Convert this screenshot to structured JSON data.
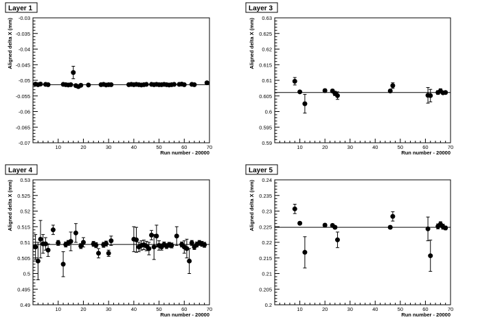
{
  "chart_data": [
    {
      "type": "scatter",
      "title": "Layer 1",
      "xlabel": "Run number - 20000",
      "ylabel": "Aligned delta X (mm)",
      "xlim": [
        0,
        70
      ],
      "ylim": [
        -0.07,
        -0.03
      ],
      "xticks": [
        10,
        20,
        30,
        40,
        50,
        60,
        70
      ],
      "yticks": [
        -0.07,
        -0.065,
        -0.06,
        -0.055,
        -0.05,
        -0.045,
        -0.04,
        -0.035,
        -0.03
      ],
      "ytick_labels": [
        "-0.07",
        "-0.065",
        "-0.06",
        "-0.055",
        "-0.05",
        "-0.045",
        "-0.04",
        "-0.035",
        "-0.03"
      ],
      "fit_line": -0.0514,
      "error_bars": true,
      "grid": false,
      "points": [
        {
          "x": 1,
          "y": -0.0512,
          "err": 0.0004
        },
        {
          "x": 2,
          "y": -0.0514,
          "err": 0.0004
        },
        {
          "x": 3,
          "y": -0.0512,
          "err": 0.0004
        },
        {
          "x": 5,
          "y": -0.0513,
          "err": 0.0004
        },
        {
          "x": 6,
          "y": -0.0514,
          "err": 0.0004
        },
        {
          "x": 12,
          "y": -0.0513,
          "err": 0.0004
        },
        {
          "x": 13,
          "y": -0.0514,
          "err": 0.0004
        },
        {
          "x": 14,
          "y": -0.0515,
          "err": 0.0004
        },
        {
          "x": 15,
          "y": -0.0514,
          "err": 0.0004
        },
        {
          "x": 16,
          "y": -0.0475,
          "err": 0.002
        },
        {
          "x": 17,
          "y": -0.0517,
          "err": 0.0004
        },
        {
          "x": 18,
          "y": -0.052,
          "err": 0.0005
        },
        {
          "x": 19,
          "y": -0.0516,
          "err": 0.0004
        },
        {
          "x": 22,
          "y": -0.0515,
          "err": 0.0004
        },
        {
          "x": 27,
          "y": -0.0514,
          "err": 0.0004
        },
        {
          "x": 28,
          "y": -0.0513,
          "err": 0.0004
        },
        {
          "x": 29,
          "y": -0.0515,
          "err": 0.0004
        },
        {
          "x": 30,
          "y": -0.0514,
          "err": 0.0004
        },
        {
          "x": 31,
          "y": -0.0514,
          "err": 0.0004
        },
        {
          "x": 38,
          "y": -0.0514,
          "err": 0.0004
        },
        {
          "x": 39,
          "y": -0.0513,
          "err": 0.0004
        },
        {
          "x": 40,
          "y": -0.0514,
          "err": 0.0004
        },
        {
          "x": 41,
          "y": -0.0513,
          "err": 0.0004
        },
        {
          "x": 42,
          "y": -0.0514,
          "err": 0.0004
        },
        {
          "x": 43,
          "y": -0.0515,
          "err": 0.0004
        },
        {
          "x": 44,
          "y": -0.0514,
          "err": 0.0004
        },
        {
          "x": 45,
          "y": -0.0513,
          "err": 0.0004
        },
        {
          "x": 47,
          "y": -0.0513,
          "err": 0.0004
        },
        {
          "x": 48,
          "y": -0.0514,
          "err": 0.0004
        },
        {
          "x": 49,
          "y": -0.0513,
          "err": 0.0004
        },
        {
          "x": 50,
          "y": -0.0514,
          "err": 0.0004
        },
        {
          "x": 51,
          "y": -0.0514,
          "err": 0.0004
        },
        {
          "x": 52,
          "y": -0.0513,
          "err": 0.0004
        },
        {
          "x": 53,
          "y": -0.0514,
          "err": 0.0004
        },
        {
          "x": 54,
          "y": -0.0515,
          "err": 0.0004
        },
        {
          "x": 55,
          "y": -0.0514,
          "err": 0.0004
        },
        {
          "x": 56,
          "y": -0.0513,
          "err": 0.0004
        },
        {
          "x": 58,
          "y": -0.0513,
          "err": 0.0004
        },
        {
          "x": 59,
          "y": -0.0512,
          "err": 0.0004
        },
        {
          "x": 60,
          "y": -0.0514,
          "err": 0.0004
        },
        {
          "x": 63,
          "y": -0.0513,
          "err": 0.0004
        },
        {
          "x": 64,
          "y": -0.0514,
          "err": 0.0004
        },
        {
          "x": 69,
          "y": -0.0508,
          "err": 0.0004
        }
      ]
    },
    {
      "type": "scatter",
      "title": "Layer 3",
      "xlabel": "Run number - 20000",
      "ylabel": "Aligned delta X (mm)",
      "xlim": [
        0,
        70
      ],
      "ylim": [
        0.59,
        0.63
      ],
      "xticks": [
        10,
        20,
        30,
        40,
        50,
        60,
        70
      ],
      "yticks": [
        0.59,
        0.595,
        0.6,
        0.605,
        0.61,
        0.615,
        0.62,
        0.625,
        0.63
      ],
      "ytick_labels": [
        "0.59",
        "0.595",
        "0.6",
        "0.605",
        "0.61",
        "0.615",
        "0.62",
        "0.625",
        "0.63"
      ],
      "fit_line": 0.6061,
      "error_bars": true,
      "grid": false,
      "points": [
        {
          "x": 8,
          "y": 0.6097,
          "err": 0.0012
        },
        {
          "x": 10,
          "y": 0.6063,
          "err": 0.0004
        },
        {
          "x": 12,
          "y": 0.6025,
          "err": 0.003
        },
        {
          "x": 20,
          "y": 0.6067,
          "err": 0.0005
        },
        {
          "x": 23,
          "y": 0.6066,
          "err": 0.0005
        },
        {
          "x": 24,
          "y": 0.6058,
          "err": 0.0007
        },
        {
          "x": 25,
          "y": 0.6051,
          "err": 0.0012
        },
        {
          "x": 46,
          "y": 0.6066,
          "err": 0.0004
        },
        {
          "x": 47,
          "y": 0.6083,
          "err": 0.0009
        },
        {
          "x": 61,
          "y": 0.6052,
          "err": 0.0025
        },
        {
          "x": 62,
          "y": 0.6051,
          "err": 0.002
        },
        {
          "x": 65,
          "y": 0.6061,
          "err": 0.0006
        },
        {
          "x": 66,
          "y": 0.6066,
          "err": 0.0007
        },
        {
          "x": 67,
          "y": 0.606,
          "err": 0.0005
        },
        {
          "x": 68,
          "y": 0.6061,
          "err": 0.0005
        }
      ]
    },
    {
      "type": "scatter",
      "title": "Layer 4",
      "xlabel": "Run number - 20000",
      "ylabel": "Aligned delta X (mm)",
      "xlim": [
        0,
        70
      ],
      "ylim": [
        0.49,
        0.53
      ],
      "xticks": [
        10,
        20,
        30,
        40,
        50,
        60,
        70
      ],
      "yticks": [
        0.49,
        0.495,
        0.5,
        0.505,
        0.51,
        0.515,
        0.52,
        0.525,
        0.53
      ],
      "ytick_labels": [
        "0.49",
        "0.495",
        "0.5",
        "0.505",
        "0.51",
        "0.515",
        "0.52",
        "0.525",
        "0.53"
      ],
      "fit_line": 0.5093,
      "error_bars": true,
      "grid": false,
      "points": [
        {
          "x": 1,
          "y": 0.5085,
          "err": 0.004
        },
        {
          "x": 2,
          "y": 0.504,
          "err": 0.006
        },
        {
          "x": 3,
          "y": 0.511,
          "err": 0.006
        },
        {
          "x": 4,
          "y": 0.5095,
          "err": 0.003
        },
        {
          "x": 5,
          "y": 0.5095,
          "err": 0.002
        },
        {
          "x": 6,
          "y": 0.5075,
          "err": 0.002
        },
        {
          "x": 8,
          "y": 0.514,
          "err": 0.0015
        },
        {
          "x": 10,
          "y": 0.5098,
          "err": 0.0008
        },
        {
          "x": 12,
          "y": 0.503,
          "err": 0.004
        },
        {
          "x": 13,
          "y": 0.5093,
          "err": 0.0008
        },
        {
          "x": 14,
          "y": 0.5098,
          "err": 0.0008
        },
        {
          "x": 15,
          "y": 0.5103,
          "err": 0.003
        },
        {
          "x": 17,
          "y": 0.513,
          "err": 0.003
        },
        {
          "x": 19,
          "y": 0.5088,
          "err": 0.0008
        },
        {
          "x": 20,
          "y": 0.51,
          "err": 0.0015
        },
        {
          "x": 24,
          "y": 0.5095,
          "err": 0.0008
        },
        {
          "x": 25,
          "y": 0.5091,
          "err": 0.0008
        },
        {
          "x": 26,
          "y": 0.5065,
          "err": 0.0015
        },
        {
          "x": 28,
          "y": 0.5092,
          "err": 0.0008
        },
        {
          "x": 29,
          "y": 0.5096,
          "err": 0.0008
        },
        {
          "x": 30,
          "y": 0.5065,
          "err": 0.001
        },
        {
          "x": 31,
          "y": 0.5105,
          "err": 0.0015
        },
        {
          "x": 40,
          "y": 0.511,
          "err": 0.004
        },
        {
          "x": 41,
          "y": 0.5108,
          "err": 0.004
        },
        {
          "x": 42,
          "y": 0.5085,
          "err": 0.0015
        },
        {
          "x": 43,
          "y": 0.509,
          "err": 0.0015
        },
        {
          "x": 44,
          "y": 0.5092,
          "err": 0.0015
        },
        {
          "x": 45,
          "y": 0.5088,
          "err": 0.0015
        },
        {
          "x": 46,
          "y": 0.508,
          "err": 0.002
        },
        {
          "x": 47,
          "y": 0.5123,
          "err": 0.0015
        },
        {
          "x": 48,
          "y": 0.5085,
          "err": 0.004
        },
        {
          "x": 49,
          "y": 0.512,
          "err": 0.0035
        },
        {
          "x": 50,
          "y": 0.509,
          "err": 0.0015
        },
        {
          "x": 51,
          "y": 0.5085,
          "err": 0.001
        },
        {
          "x": 52,
          "y": 0.5093,
          "err": 0.0008
        },
        {
          "x": 53,
          "y": 0.5088,
          "err": 0.0008
        },
        {
          "x": 54,
          "y": 0.5092,
          "err": 0.0008
        },
        {
          "x": 55,
          "y": 0.509,
          "err": 0.0008
        },
        {
          "x": 57,
          "y": 0.512,
          "err": 0.003
        },
        {
          "x": 59,
          "y": 0.5093,
          "err": 0.0008
        },
        {
          "x": 60,
          "y": 0.5085,
          "err": 0.002
        },
        {
          "x": 61,
          "y": 0.508,
          "err": 0.003
        },
        {
          "x": 62,
          "y": 0.504,
          "err": 0.004
        },
        {
          "x": 63,
          "y": 0.5098,
          "err": 0.0008
        },
        {
          "x": 64,
          "y": 0.5085,
          "err": 0.0008
        },
        {
          "x": 65,
          "y": 0.5093,
          "err": 0.0008
        },
        {
          "x": 66,
          "y": 0.5098,
          "err": 0.0008
        },
        {
          "x": 67,
          "y": 0.5095,
          "err": 0.0008
        },
        {
          "x": 68,
          "y": 0.5092,
          "err": 0.0008
        }
      ]
    },
    {
      "type": "scatter",
      "title": "Layer 5",
      "xlabel": "Run number - 20000",
      "ylabel": "Aligned delta X (mm)",
      "xlim": [
        0,
        70
      ],
      "ylim": [
        0.2,
        0.24
      ],
      "xticks": [
        10,
        20,
        30,
        40,
        50,
        60,
        70
      ],
      "yticks": [
        0.2,
        0.205,
        0.21,
        0.215,
        0.22,
        0.225,
        0.23,
        0.235,
        0.24
      ],
      "ytick_labels": [
        "0.2",
        "0.205",
        "0.21",
        "0.215",
        "0.22",
        "0.225",
        "0.23",
        "0.235",
        "0.24"
      ],
      "fit_line": 0.2248,
      "error_bars": true,
      "grid": false,
      "points": [
        {
          "x": 8,
          "y": 0.2307,
          "err": 0.0015
        },
        {
          "x": 10,
          "y": 0.2261,
          "err": 0.0005
        },
        {
          "x": 12,
          "y": 0.2168,
          "err": 0.005
        },
        {
          "x": 20,
          "y": 0.2255,
          "err": 0.0005
        },
        {
          "x": 23,
          "y": 0.2254,
          "err": 0.0005
        },
        {
          "x": 24,
          "y": 0.2248,
          "err": 0.0005
        },
        {
          "x": 25,
          "y": 0.2208,
          "err": 0.0025
        },
        {
          "x": 46,
          "y": 0.2248,
          "err": 0.0005
        },
        {
          "x": 47,
          "y": 0.2283,
          "err": 0.0015
        },
        {
          "x": 61,
          "y": 0.2243,
          "err": 0.0038
        },
        {
          "x": 62,
          "y": 0.2157,
          "err": 0.005
        },
        {
          "x": 65,
          "y": 0.2251,
          "err": 0.0008
        },
        {
          "x": 66,
          "y": 0.2258,
          "err": 0.0008
        },
        {
          "x": 67,
          "y": 0.225,
          "err": 0.0008
        },
        {
          "x": 68,
          "y": 0.2246,
          "err": 0.0006
        }
      ]
    }
  ]
}
